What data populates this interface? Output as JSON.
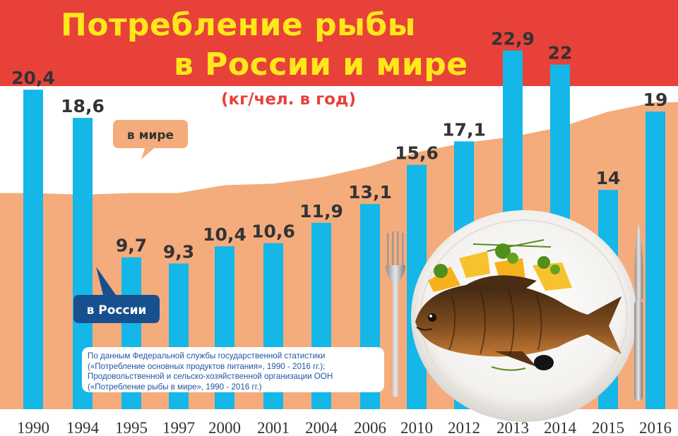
{
  "title": {
    "line1": "Потребление рыбы",
    "line2": "в России и мире",
    "unit": "(кг/чел. в год)"
  },
  "colors": {
    "header_band": "#e8413a",
    "world_area": "#f4ac7c",
    "russia_bars": "#14b7e8",
    "title_text": "#ffe81a",
    "value_text": "#333333",
    "russia_label_bg": "#17508e"
  },
  "labels": {
    "world": "в мире",
    "russia": "в России"
  },
  "source": "По данным Федеральной службы государственной статистики («Потребление основных продуктов питания», 1990 - 2016 гг.); Продовольственной и сельско-хозяйственной организации ООН («Потребление рыбы в мире», 1990 - 2016 гг.)",
  "chart_data": {
    "type": "bar",
    "categories": [
      "1990",
      "1994",
      "1995",
      "1997",
      "2000",
      "2001",
      "2004",
      "2006",
      "2010",
      "2012",
      "2013",
      "2014",
      "2015",
      "2016"
    ],
    "series": [
      {
        "name": "в России",
        "values": [
          20.4,
          18.6,
          9.7,
          9.3,
          10.4,
          10.6,
          11.9,
          13.1,
          15.6,
          17.1,
          22.9,
          22,
          14,
          19
        ],
        "value_labels": [
          "20,4",
          "18,6",
          "9,7",
          "9,3",
          "10,4",
          "10,6",
          "11,9",
          "13,1",
          "15,6",
          "17,1",
          "22,9",
          "22",
          "14",
          "19"
        ]
      },
      {
        "name": "в мире",
        "type": "area",
        "values": [
          13.8,
          13.7,
          13.8,
          13.8,
          14.3,
          14.4,
          14.8,
          15.5,
          16.4,
          17.0,
          17.4,
          18.0,
          19.0,
          19.6
        ]
      }
    ],
    "title": "Потребление рыбы в России и мире",
    "ylabel": "(кг/чел. в год)",
    "ylim": [
      0,
      24
    ],
    "grid": false,
    "legend": "inline-callouts"
  }
}
